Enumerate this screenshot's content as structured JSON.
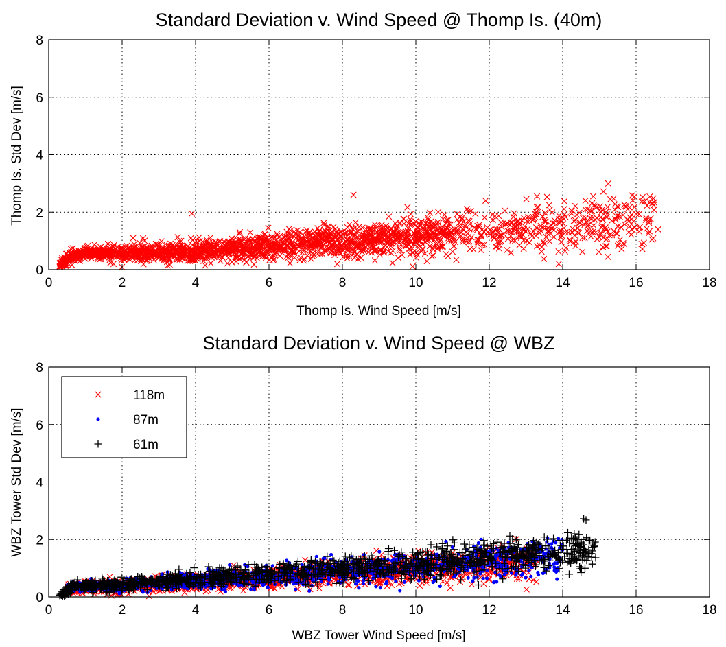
{
  "chart_data": [
    {
      "type": "scatter",
      "title": "Standard Deviation v. Wind Speed @ Thomp Is. (40m)",
      "xlabel": "Thomp Is. Wind Speed [m/s]",
      "ylabel": "Thomp Is. Std Dev [m/s]",
      "xlim": [
        0,
        18
      ],
      "ylim": [
        0,
        8
      ],
      "xticks": [
        0,
        2,
        4,
        6,
        8,
        10,
        12,
        14,
        16,
        18
      ],
      "yticks": [
        0,
        2,
        4,
        6,
        8
      ],
      "grid": true,
      "legend": null,
      "series": [
        {
          "marker": "x",
          "color": "#ff0000",
          "trend": {
            "x": [
              0.3,
              0.6,
              1,
              2,
              4,
              6,
              8,
              10,
              12,
              14,
              16.5
            ],
            "y": [
              0.15,
              0.45,
              0.6,
              0.55,
              0.65,
              0.8,
              1.0,
              1.15,
              1.35,
              1.55,
              1.6
            ]
          },
          "notable_points": [
            [
              8.3,
              2.6
            ],
            [
              13.3,
              2.55
            ],
            [
              15.3,
              2.45
            ],
            [
              3.9,
              1.95
            ],
            [
              16.6,
              1.4
            ],
            [
              14.6,
              1.1
            ],
            [
              2.3,
              1.1
            ],
            [
              11.9,
              2.4
            ]
          ]
        }
      ]
    },
    {
      "type": "scatter",
      "title": "Standard Deviation v. Wind Speed @ WBZ",
      "xlabel": "WBZ Tower Wind Speed [m/s]",
      "ylabel": "WBZ Tower Std Dev [m/s]",
      "xlim": [
        0,
        18
      ],
      "ylim": [
        0,
        8
      ],
      "xticks": [
        0,
        2,
        4,
        6,
        8,
        10,
        12,
        14,
        16,
        18
      ],
      "yticks": [
        0,
        2,
        4,
        6,
        8
      ],
      "grid": true,
      "legend": "top-left",
      "series": [
        {
          "name": "118m",
          "marker": "x",
          "color": "#ff0000",
          "trend": {
            "x": [
              0.5,
              2,
              4,
              6,
              8,
              10,
              12,
              13.3
            ],
            "y": [
              0.3,
              0.35,
              0.5,
              0.65,
              0.85,
              1.0,
              1.15,
              1.2
            ]
          }
        },
        {
          "name": "87m",
          "marker": "dot",
          "color": "#0000ff",
          "trend": {
            "x": [
              0.5,
              2,
              4,
              6,
              8,
              10,
              12,
              14
            ],
            "y": [
              0.3,
              0.4,
              0.55,
              0.7,
              0.9,
              1.05,
              1.2,
              1.4
            ]
          }
        },
        {
          "name": "61m",
          "marker": "+",
          "color": "#000000",
          "trend": {
            "x": [
              0.3,
              0.6,
              2,
              4,
              6,
              8,
              10,
              12,
              14,
              14.9
            ],
            "y": [
              0.0,
              0.35,
              0.45,
              0.6,
              0.8,
              0.95,
              1.15,
              1.35,
              1.55,
              1.75
            ]
          }
        }
      ]
    }
  ]
}
